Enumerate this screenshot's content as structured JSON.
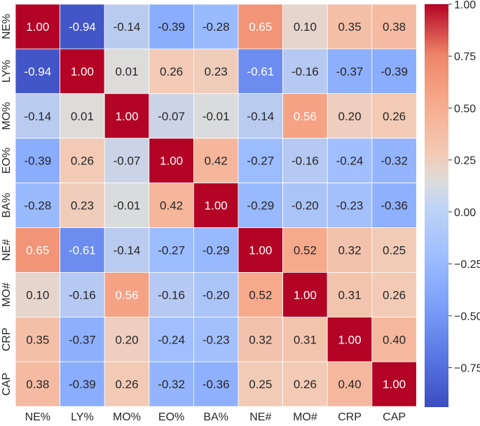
{
  "chart_data": {
    "type": "heatmap",
    "title": "",
    "row_labels": [
      "NE%",
      "LY%",
      "MO%",
      "EO%",
      "BA%",
      "NE#",
      "MO#",
      "CRP",
      "CAP"
    ],
    "col_labels": [
      "NE%",
      "LY%",
      "MO%",
      "EO%",
      "BA%",
      "NE#",
      "MO#",
      "CRP",
      "CAP"
    ],
    "values": [
      [
        1.0,
        -0.94,
        -0.14,
        -0.39,
        -0.28,
        0.65,
        0.1,
        0.35,
        0.38
      ],
      [
        -0.94,
        1.0,
        0.01,
        0.26,
        0.23,
        -0.61,
        -0.16,
        -0.37,
        -0.39
      ],
      [
        -0.14,
        0.01,
        1.0,
        -0.07,
        -0.01,
        -0.14,
        0.56,
        0.2,
        0.26
      ],
      [
        -0.39,
        0.26,
        -0.07,
        1.0,
        0.42,
        -0.27,
        -0.16,
        -0.24,
        -0.32
      ],
      [
        -0.28,
        0.23,
        -0.01,
        0.42,
        1.0,
        -0.29,
        -0.2,
        -0.23,
        -0.36
      ],
      [
        0.65,
        -0.61,
        -0.14,
        -0.27,
        -0.29,
        1.0,
        0.52,
        0.32,
        0.25
      ],
      [
        0.1,
        -0.16,
        0.56,
        -0.16,
        -0.2,
        0.52,
        1.0,
        0.31,
        0.26
      ],
      [
        0.35,
        -0.37,
        0.2,
        -0.24,
        -0.23,
        0.32,
        0.31,
        1.0,
        0.4
      ],
      [
        0.38,
        -0.39,
        0.26,
        -0.32,
        -0.36,
        0.25,
        0.26,
        0.4,
        1.0
      ]
    ],
    "cell_labels": [
      [
        "1.00",
        "-0.94",
        "-0.14",
        "-0.39",
        "-0.28",
        "0.65",
        "0.10",
        "0.35",
        "0.38"
      ],
      [
        "-0.94",
        "1.00",
        "0.01",
        "0.26",
        "0.23",
        "-0.61",
        "-0.16",
        "-0.37",
        "-0.39"
      ],
      [
        "-0.14",
        "0.01",
        "1.00",
        "-0.07",
        "-0.01",
        "-0.14",
        "0.56",
        "0.20",
        "0.26"
      ],
      [
        "-0.39",
        "0.26",
        "-0.07",
        "1.00",
        "0.42",
        "-0.27",
        "-0.16",
        "-0.24",
        "-0.32"
      ],
      [
        "-0.28",
        "0.23",
        "-0.01",
        "0.42",
        "1.00",
        "-0.29",
        "-0.20",
        "-0.23",
        "-0.36"
      ],
      [
        "0.65",
        "-0.61",
        "-0.14",
        "-0.27",
        "-0.29",
        "1.00",
        "0.52",
        "0.32",
        "0.25"
      ],
      [
        "0.10",
        "-0.16",
        "0.56",
        "-0.16",
        "-0.20",
        "0.52",
        "1.00",
        "0.31",
        "0.26"
      ],
      [
        "0.35",
        "-0.37",
        "0.20",
        "-0.24",
        "-0.23",
        "0.32",
        "0.31",
        "1.00",
        "0.40"
      ],
      [
        "0.38",
        "-0.39",
        "0.26",
        "-0.32",
        "-0.36",
        "0.25",
        "0.26",
        "0.40",
        "1.00"
      ]
    ],
    "colorbar": {
      "range": [
        -0.94,
        1.0
      ],
      "ticks": [
        1.0,
        0.75,
        0.5,
        0.25,
        0.0,
        -0.25,
        -0.5,
        -0.75
      ],
      "tick_labels": [
        "1.00",
        "0.75",
        "0.50",
        "0.25",
        "0.00",
        "−0.25",
        "−0.50",
        "−0.75"
      ],
      "colormap": "coolwarm",
      "low_color": "#3b4cc0",
      "mid_color": "#dddddd",
      "high_color": "#b40426"
    },
    "legend": "right"
  }
}
